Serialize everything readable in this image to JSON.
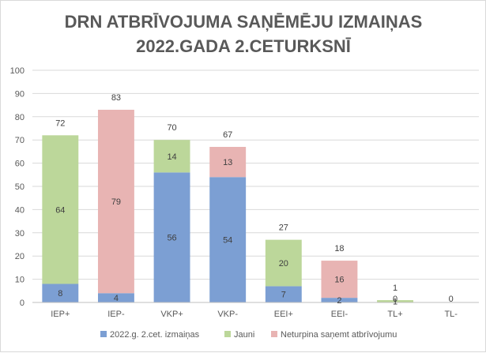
{
  "chart_data": {
    "type": "bar",
    "stacked": true,
    "title_lines": [
      "DRN ATBRĪVOJUMA SAŅĒMĒJU IZMAIŅAS",
      "2022.GADA 2.CETURKSNĪ"
    ],
    "categories": [
      "IEP+",
      "IEP-",
      "VKP+",
      "VKP-",
      "EEI+",
      "EEI-",
      "TL+",
      "TL-"
    ],
    "ylim": [
      0,
      100
    ],
    "yticks": [
      0,
      10,
      20,
      30,
      40,
      50,
      60,
      70,
      80,
      90,
      100
    ],
    "grid": true,
    "legend_position": "bottom",
    "series": [
      {
        "name": "2022.g. 2.cet. izmaiņas",
        "color": "#7c9fd3",
        "values": [
          8,
          4,
          56,
          54,
          7,
          2,
          null,
          null
        ]
      },
      {
        "name": "Jauni",
        "color": "#bcd79a",
        "values": [
          64,
          null,
          14,
          null,
          20,
          null,
          1,
          null
        ]
      },
      {
        "name": "Neturpina saņemt atbrīvojumu",
        "color": "#e8b4b3",
        "values": [
          null,
          79,
          null,
          13,
          null,
          16,
          null,
          null
        ]
      }
    ],
    "data_labels": [
      {
        "category": "IEP+",
        "series": "2022.g. 2.cet. izmaiņas",
        "text": "8"
      },
      {
        "category": "IEP+",
        "series": "Jauni",
        "text": "64"
      },
      {
        "category": "IEP-",
        "series": "2022.g. 2.cet. izmaiņas",
        "text": "4"
      },
      {
        "category": "IEP-",
        "series": "Neturpina saņemt atbrīvojumu",
        "text": "79"
      },
      {
        "category": "VKP+",
        "series": "2022.g. 2.cet. izmaiņas",
        "text": "56"
      },
      {
        "category": "VKP+",
        "series": "Jauni",
        "text": "14"
      },
      {
        "category": "VKP-",
        "series": "2022.g. 2.cet. izmaiņas",
        "text": "54"
      },
      {
        "category": "VKP-",
        "series": "Neturpina saņemt atbrīvojumu",
        "text": "13"
      },
      {
        "category": "EEI+",
        "series": "2022.g. 2.cet. izmaiņas",
        "text": "7"
      },
      {
        "category": "EEI+",
        "series": "Jauni",
        "text": "20"
      },
      {
        "category": "EEI-",
        "series": "2022.g. 2.cet. izmaiņas",
        "text": "2"
      },
      {
        "category": "EEI-",
        "series": "Neturpina saņemt atbrīvojumu",
        "text": "16"
      },
      {
        "category": "TL+",
        "series": "Jauni",
        "text": "1"
      },
      {
        "category": "TL+",
        "series": "2022.g. 2.cet. izmaiņas",
        "text": "0"
      },
      {
        "category": "TL-",
        "series": "2022.g. 2.cet. izmaiņas",
        "text": "0"
      }
    ],
    "totals": [
      "72",
      "83",
      "70",
      "67",
      "27",
      "18",
      "1",
      ""
    ]
  }
}
